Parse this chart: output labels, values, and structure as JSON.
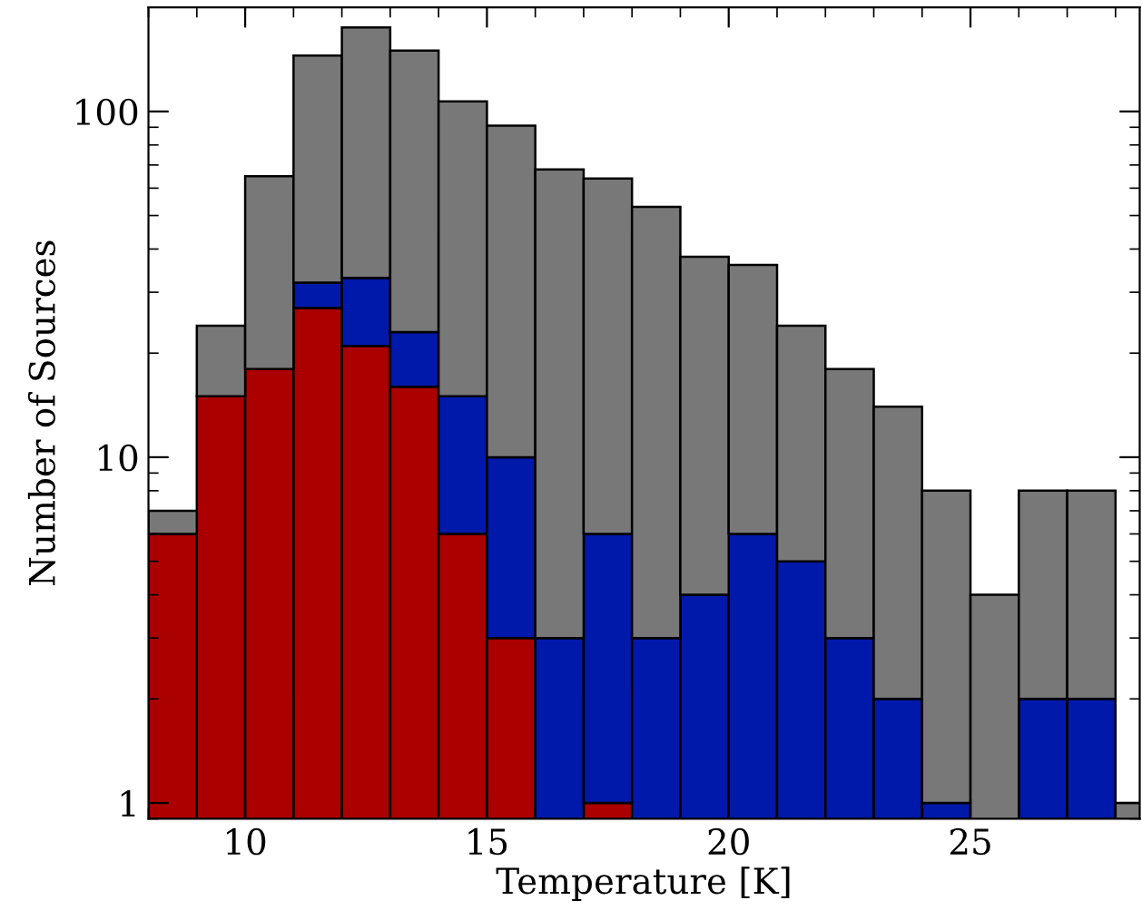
{
  "chart_data": {
    "type": "bar",
    "stacked": true,
    "xlabel": "Temperature [K]",
    "ylabel": "Number of Sources",
    "x": [
      8.5,
      9.5,
      10.5,
      11.5,
      12.5,
      13.5,
      14.5,
      15.5,
      16.5,
      17.5,
      18.5,
      19.5,
      20.5,
      21.5,
      22.5,
      23.5,
      24.5,
      25.5,
      26.5,
      27.5,
      28.5
    ],
    "series": [
      {
        "color": "#aa0000",
        "values": [
          6,
          15,
          18,
          27,
          21,
          16,
          6,
          3,
          null,
          1,
          null,
          null,
          null,
          null,
          null,
          null,
          null,
          null,
          null,
          null,
          null
        ]
      },
      {
        "color": "#0019aa",
        "values": [
          null,
          null,
          null,
          5,
          12,
          7,
          9,
          7,
          3,
          5,
          3,
          4,
          6,
          5,
          3,
          2,
          1,
          null,
          2,
          2,
          null
        ]
      },
      {
        "color": "#787878",
        "values": [
          1,
          9,
          47,
          113,
          142,
          127,
          92,
          81,
          65,
          58,
          50,
          34,
          30,
          19,
          15,
          12,
          7,
          4,
          6,
          6,
          1
        ]
      }
    ],
    "log": "y",
    "xlim": [
      8,
      28.5
    ],
    "ylim": [
      0.9,
      200
    ],
    "xticks": [
      10,
      15,
      20,
      25
    ],
    "yticks": [
      1,
      10,
      100
    ],
    "grid": false,
    "legend": false
  }
}
